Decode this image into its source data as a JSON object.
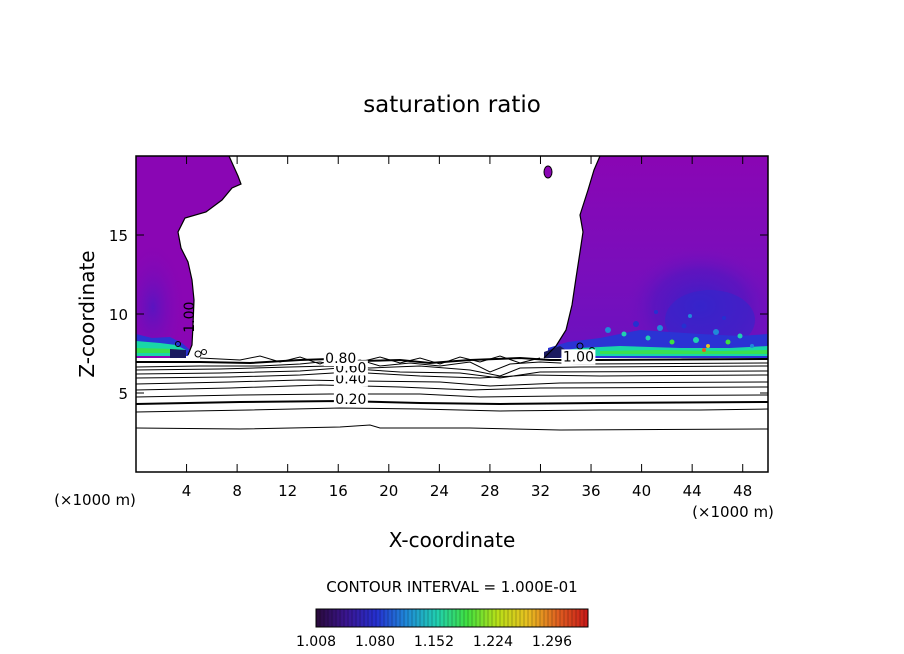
{
  "chart_data": {
    "type": "heatmap",
    "title": "saturation ratio",
    "xlabel": "X-coordinate",
    "ylabel": "Z-coordinate",
    "x_unit_left": "(×1000 m)",
    "x_unit_right": "(×1000 m)",
    "xlim": [
      0,
      50
    ],
    "ylim": [
      0,
      20
    ],
    "x_ticks": [
      4,
      8,
      12,
      16,
      20,
      24,
      28,
      32,
      36,
      40,
      44,
      48
    ],
    "y_ticks": [
      5,
      10,
      15
    ],
    "contour_interval_text": "CONTOUR INTERVAL = 1.000E-01",
    "contour_levels": [
      0.2,
      0.3,
      0.4,
      0.5,
      0.6,
      0.7,
      0.8,
      0.9,
      1.0
    ],
    "contour_labels": [
      {
        "text": "0.20",
        "x": 17.0,
        "y": 4.3
      },
      {
        "text": "0.40",
        "x": 17.0,
        "y": 5.6
      },
      {
        "text": "0.60",
        "x": 17.0,
        "y": 6.3
      },
      {
        "text": "0.80",
        "x": 16.2,
        "y": 6.9
      },
      {
        "text": "1.00",
        "x": 35.0,
        "y": 7.0
      },
      {
        "text": "1.00",
        "x": 4.6,
        "y": 9.8,
        "rotate": -90
      }
    ],
    "colorbar": {
      "min": 1.008,
      "max": 1.34,
      "tick_labels": [
        "1.008",
        "1.080",
        "1.152",
        "1.224",
        "1.296"
      ],
      "colors": [
        "#2a0a3a",
        "#3a1590",
        "#2530d0",
        "#1f8ad8",
        "#20d0b0",
        "#40e040",
        "#b8e018",
        "#e8c020",
        "#e06020",
        "#c81818"
      ]
    },
    "colors": {
      "purple_far": "#8a06b4",
      "purple_mid": "#6a12c0",
      "blue_deep": "#3a2ad0",
      "teal": "#19d6a8",
      "green": "#3ae050"
    }
  }
}
